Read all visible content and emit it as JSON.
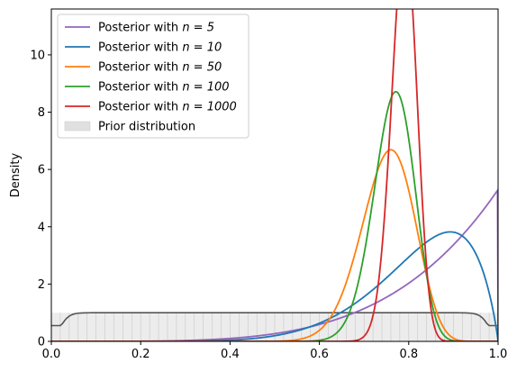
{
  "chart_data": {
    "type": "line",
    "title": "",
    "xlabel": "",
    "ylabel": "Density",
    "xlim": [
      0,
      1
    ],
    "ylim": [
      0,
      11.6
    ],
    "x_ticks": [
      "0.0",
      "0.2",
      "0.4",
      "0.6",
      "0.8",
      "1.0"
    ],
    "y_ticks": [
      "0",
      "2",
      "4",
      "6",
      "8",
      "10"
    ],
    "grid": false,
    "legend_position": "top-left",
    "series": [
      {
        "name_prefix": "Posterior with ",
        "name_math": "n = 5",
        "color": "#9467bd",
        "dist": "beta",
        "alpha": 5.3,
        "beta": 1.0
      },
      {
        "name_prefix": "Posterior with ",
        "name_math": "n = 10",
        "color": "#1f77b4",
        "dist": "beta",
        "alpha": 8.5,
        "beta": 1.9
      },
      {
        "name_prefix": "Posterior with ",
        "name_math": "n = 50",
        "color": "#ff7f0e",
        "dist": "beta",
        "alpha": 39.0,
        "beta": 13.0
      },
      {
        "name_prefix": "Posterior with ",
        "name_math": "n = 100",
        "color": "#2ca02c",
        "dist": "beta",
        "alpha": 65.0,
        "beta": 20.0
      },
      {
        "name_prefix": "Posterior with ",
        "name_math": "n = 1000",
        "color": "#d62728",
        "dist": "beta",
        "alpha": 164.0,
        "beta": 44.0
      }
    ],
    "prior": {
      "name": "Prior distribution",
      "fill_color": "#e0e0e0",
      "line_color": "#555555",
      "height": 1.0
    }
  }
}
